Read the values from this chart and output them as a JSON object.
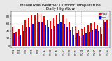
{
  "title": "Milwaukee Weather Outdoor Temperature",
  "subtitle": "Daily High/Low",
  "background_color": "#e8e8e8",
  "plot_bg_color": "#ffffff",
  "high_color": "#ff0000",
  "low_color": "#0000ff",
  "vline_color": "#aaaaaa",
  "ylim": [
    -5,
    95
  ],
  "ytick_labels": [
    "0",
    "20",
    "40",
    "60",
    "80"
  ],
  "ytick_vals": [
    0,
    20,
    40,
    60,
    80
  ],
  "dates": [
    "5/1",
    "5/2",
    "5/3",
    "5/4",
    "5/5",
    "5/6",
    "5/7",
    "5/8",
    "5/9",
    "5/10",
    "5/11",
    "5/12",
    "5/13",
    "5/14",
    "5/15",
    "5/16",
    "5/17",
    "5/18",
    "5/19",
    "5/20",
    "5/21",
    "5/22",
    "5/23",
    "5/24",
    "5/25",
    "5/26",
    "5/27",
    "5/28",
    "5/29",
    "5/30",
    "5/31"
  ],
  "highs": [
    52,
    38,
    45,
    58,
    72,
    75,
    82,
    85,
    88,
    88,
    80,
    72,
    68,
    78,
    85,
    88,
    82,
    78,
    65,
    50,
    55,
    42,
    45,
    52,
    58,
    62,
    65,
    58,
    50,
    88,
    72
  ],
  "lows": [
    35,
    28,
    30,
    40,
    50,
    52,
    60,
    62,
    65,
    65,
    58,
    50,
    45,
    54,
    60,
    65,
    60,
    52,
    42,
    30,
    35,
    28,
    30,
    35,
    38,
    42,
    45,
    40,
    32,
    65,
    48
  ],
  "vline_positions": [
    19.5,
    21.5
  ],
  "legend_high": "High",
  "legend_low": "Low",
  "title_fontsize": 4.0,
  "tick_fontsize": 3.0,
  "ylabel_fontsize": 3.5,
  "bar_width": 0.4
}
